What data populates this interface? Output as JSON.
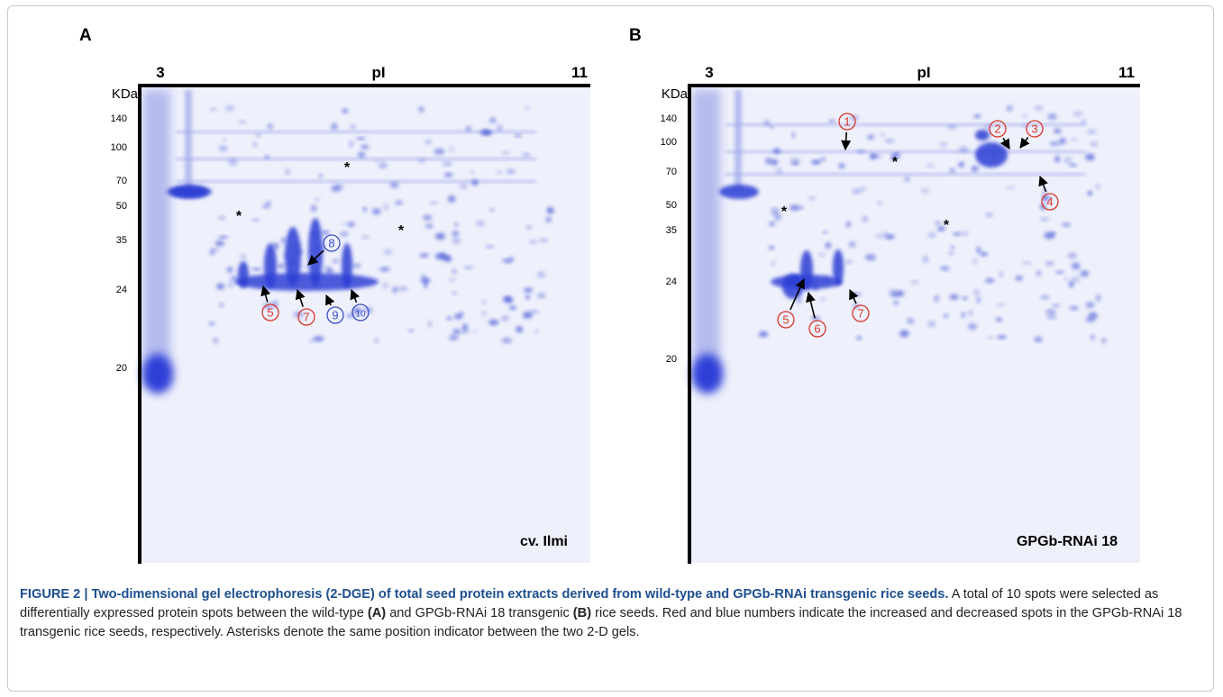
{
  "figure": {
    "panels": [
      {
        "label": "A",
        "axis_start": "3",
        "axis_label": "pI",
        "axis_end": "11",
        "unit": "KDa",
        "mw_ticks": [
          "140",
          "100",
          "70",
          "50",
          "35",
          "24",
          "20"
        ],
        "sample": "cv. Ilmi",
        "spots": [
          {
            "label": "5",
            "color": "red"
          },
          {
            "label": "7",
            "color": "red"
          },
          {
            "label": "8",
            "color": "blue"
          },
          {
            "label": "9",
            "color": "blue"
          },
          {
            "label": "10",
            "color": "blue"
          }
        ],
        "markers": [
          "*",
          "*",
          "*"
        ]
      },
      {
        "label": "B",
        "axis_start": "3",
        "axis_label": "pI",
        "axis_end": "11",
        "unit": "KDa",
        "mw_ticks": [
          "140",
          "100",
          "70",
          "50",
          "35",
          "24",
          "20"
        ],
        "sample": "GPGb-RNAi 18",
        "spots": [
          {
            "label": "1",
            "color": "red"
          },
          {
            "label": "2",
            "color": "red"
          },
          {
            "label": "3",
            "color": "red"
          },
          {
            "label": "4",
            "color": "red"
          },
          {
            "label": "5",
            "color": "red"
          },
          {
            "label": "6",
            "color": "red"
          },
          {
            "label": "7",
            "color": "red"
          }
        ],
        "markers": [
          "*",
          "*",
          "*"
        ]
      }
    ],
    "caption": {
      "title": "FIGURE 2 | Two-dimensional gel electrophoresis (2-DGE) of total seed protein extracts derived from wild-type and GPGb-RNAi transgenic rice seeds.",
      "body": [
        {
          "text": " A total of 10 spots were selected as differentially expressed protein spots between the wild-type ",
          "bold": false
        },
        {
          "text": "(A)",
          "bold": true
        },
        {
          "text": " and GPGb-RNAi 18 transgenic ",
          "bold": false
        },
        {
          "text": "(B)",
          "bold": true
        },
        {
          "text": " rice seeds. Red and blue numbers indicate the increased and decreased spots in the GPGb-RNAi 18 transgenic rice seeds, respectively. Asterisks denote the same position indicator between the two 2-D gels.",
          "bold": false
        }
      ]
    }
  }
}
